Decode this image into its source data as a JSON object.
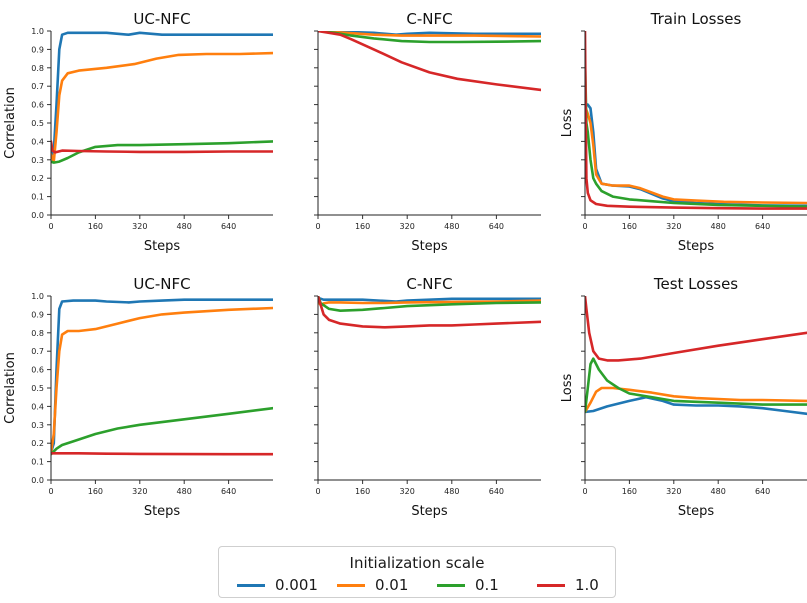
{
  "colors": {
    "0.001": "#1f77b4",
    "0.01": "#ff7f0e",
    "0.1": "#2ca02c",
    "1.0": "#d62728"
  },
  "legend": {
    "title": "Initialization scale",
    "entries": [
      {
        "label": "0.001",
        "color": "#1f77b4"
      },
      {
        "label": "0.01",
        "color": "#ff7f0e"
      },
      {
        "label": "0.1",
        "color": "#2ca02c"
      },
      {
        "label": "1.0",
        "color": "#d62728"
      }
    ],
    "placement": "bottom-center"
  },
  "chart_data": [
    {
      "type": "line",
      "title": "UC-NFC",
      "xlabel": "Steps",
      "ylabel": "Correlation",
      "xlim": [
        0,
        800
      ],
      "ylim": [
        0,
        1
      ],
      "xticks": [
        0,
        160,
        320,
        480,
        640
      ],
      "yticks": [
        0.0,
        0.1,
        0.2,
        0.3,
        0.4,
        0.5,
        0.6,
        0.7,
        0.8,
        0.9,
        1.0
      ],
      "ytick_labels_shown": true,
      "series": [
        {
          "name": "0.001",
          "x": [
            0,
            5,
            10,
            20,
            30,
            40,
            60,
            100,
            200,
            280,
            320,
            400,
            500,
            640,
            800
          ],
          "y": [
            0.38,
            0.33,
            0.35,
            0.6,
            0.9,
            0.98,
            0.99,
            0.99,
            0.99,
            0.98,
            0.99,
            0.98,
            0.98,
            0.98,
            0.98
          ]
        },
        {
          "name": "0.01",
          "x": [
            0,
            10,
            20,
            30,
            40,
            60,
            100,
            200,
            300,
            380,
            460,
            560,
            680,
            800
          ],
          "y": [
            0.33,
            0.29,
            0.45,
            0.65,
            0.73,
            0.77,
            0.785,
            0.8,
            0.82,
            0.85,
            0.87,
            0.875,
            0.875,
            0.88
          ]
        },
        {
          "name": "0.1",
          "x": [
            0,
            10,
            30,
            60,
            100,
            160,
            240,
            320,
            480,
            640,
            800
          ],
          "y": [
            0.29,
            0.285,
            0.29,
            0.31,
            0.34,
            0.37,
            0.38,
            0.38,
            0.385,
            0.39,
            0.4
          ]
        },
        {
          "name": "1.0",
          "x": [
            0,
            5,
            15,
            40,
            100,
            200,
            320,
            480,
            640,
            800
          ],
          "y": [
            0.4,
            0.35,
            0.34,
            0.35,
            0.348,
            0.345,
            0.343,
            0.343,
            0.345,
            0.345
          ]
        }
      ]
    },
    {
      "type": "line",
      "title": "C-NFC",
      "xlabel": "Steps",
      "ylabel": "",
      "xlim": [
        0,
        800
      ],
      "ylim": [
        0,
        1
      ],
      "xticks": [
        0,
        160,
        320,
        480,
        640
      ],
      "yticks": [
        0.0,
        0.1,
        0.2,
        0.3,
        0.4,
        0.5,
        0.6,
        0.7,
        0.8,
        0.9,
        1.0
      ],
      "ytick_labels_shown": false,
      "series": [
        {
          "name": "0.001",
          "x": [
            0,
            100,
            200,
            280,
            320,
            400,
            560,
            800
          ],
          "y": [
            1.0,
            0.995,
            0.99,
            0.98,
            0.985,
            0.99,
            0.985,
            0.985
          ]
        },
        {
          "name": "0.01",
          "x": [
            0,
            100,
            200,
            300,
            400,
            560,
            800
          ],
          "y": [
            1.0,
            0.99,
            0.98,
            0.975,
            0.975,
            0.975,
            0.97
          ]
        },
        {
          "name": "0.1",
          "x": [
            0,
            60,
            120,
            200,
            300,
            400,
            500,
            640,
            800
          ],
          "y": [
            1.0,
            0.99,
            0.975,
            0.96,
            0.945,
            0.94,
            0.94,
            0.942,
            0.945
          ]
        },
        {
          "name": "1.0",
          "x": [
            0,
            40,
            80,
            120,
            200,
            300,
            400,
            500,
            640,
            800
          ],
          "y": [
            1.0,
            0.99,
            0.98,
            0.955,
            0.9,
            0.83,
            0.775,
            0.74,
            0.71,
            0.68
          ]
        }
      ]
    },
    {
      "type": "line",
      "title": "Train Losses",
      "xlabel": "Steps",
      "ylabel": "Loss",
      "xlim": [
        0,
        800
      ],
      "ylim": [
        0,
        1
      ],
      "xticks": [
        0,
        160,
        320,
        480,
        640
      ],
      "yticks": [
        0.0,
        0.1,
        0.2,
        0.3,
        0.4,
        0.5,
        0.6,
        0.7,
        0.8,
        0.9,
        1.0
      ],
      "ytick_labels_shown": false,
      "series": [
        {
          "name": "0.001",
          "x": [
            0,
            10,
            20,
            30,
            40,
            60,
            100,
            160,
            200,
            280,
            320,
            400,
            500,
            640,
            800
          ],
          "y": [
            0.6,
            0.6,
            0.58,
            0.45,
            0.25,
            0.17,
            0.16,
            0.155,
            0.14,
            0.09,
            0.075,
            0.065,
            0.058,
            0.052,
            0.05
          ]
        },
        {
          "name": "0.01",
          "x": [
            0,
            5,
            10,
            20,
            30,
            40,
            60,
            100,
            160,
            200,
            280,
            320,
            400,
            500,
            640,
            800
          ],
          "y": [
            0.45,
            0.57,
            0.55,
            0.5,
            0.38,
            0.22,
            0.17,
            0.16,
            0.16,
            0.145,
            0.1,
            0.085,
            0.078,
            0.072,
            0.068,
            0.065
          ]
        },
        {
          "name": "0.1",
          "x": [
            0,
            5,
            10,
            20,
            30,
            40,
            60,
            100,
            160,
            240,
            320,
            480,
            640,
            800
          ],
          "y": [
            0.85,
            0.5,
            0.45,
            0.3,
            0.2,
            0.17,
            0.13,
            0.1,
            0.085,
            0.075,
            0.065,
            0.055,
            0.05,
            0.045
          ]
        },
        {
          "name": "1.0",
          "x": [
            0,
            2,
            5,
            10,
            20,
            40,
            80,
            160,
            320,
            480,
            640,
            800
          ],
          "y": [
            1.0,
            0.6,
            0.2,
            0.12,
            0.08,
            0.06,
            0.05,
            0.045,
            0.04,
            0.037,
            0.035,
            0.035
          ]
        }
      ]
    },
    {
      "type": "line",
      "title": "UC-NFC",
      "xlabel": "Steps",
      "ylabel": "Correlation",
      "xlim": [
        0,
        800
      ],
      "ylim": [
        0,
        1
      ],
      "xticks": [
        0,
        160,
        320,
        480,
        640
      ],
      "yticks": [
        0.0,
        0.1,
        0.2,
        0.3,
        0.4,
        0.5,
        0.6,
        0.7,
        0.8,
        0.9,
        1.0
      ],
      "ytick_labels_shown": true,
      "series": [
        {
          "name": "0.001",
          "x": [
            0,
            10,
            20,
            30,
            40,
            80,
            160,
            200,
            280,
            320,
            400,
            480,
            640,
            800
          ],
          "y": [
            0.15,
            0.2,
            0.6,
            0.93,
            0.97,
            0.975,
            0.975,
            0.97,
            0.965,
            0.97,
            0.975,
            0.98,
            0.98,
            0.98
          ]
        },
        {
          "name": "0.01",
          "x": [
            0,
            10,
            20,
            30,
            40,
            60,
            100,
            160,
            240,
            320,
            400,
            480,
            640,
            800
          ],
          "y": [
            0.15,
            0.25,
            0.5,
            0.7,
            0.79,
            0.81,
            0.81,
            0.82,
            0.85,
            0.88,
            0.9,
            0.91,
            0.925,
            0.935
          ]
        },
        {
          "name": "0.1",
          "x": [
            0,
            20,
            40,
            80,
            160,
            240,
            320,
            480,
            640,
            800
          ],
          "y": [
            0.14,
            0.17,
            0.19,
            0.21,
            0.25,
            0.28,
            0.3,
            0.33,
            0.36,
            0.39
          ]
        },
        {
          "name": "1.0",
          "x": [
            0,
            40,
            100,
            200,
            320,
            480,
            640,
            800
          ],
          "y": [
            0.145,
            0.145,
            0.145,
            0.143,
            0.142,
            0.141,
            0.14,
            0.14
          ]
        }
      ]
    },
    {
      "type": "line",
      "title": "C-NFC",
      "xlabel": "Steps",
      "ylabel": "",
      "xlim": [
        0,
        800
      ],
      "ylim": [
        0,
        1
      ],
      "xticks": [
        0,
        160,
        320,
        480,
        640
      ],
      "yticks": [
        0.0,
        0.1,
        0.2,
        0.3,
        0.4,
        0.5,
        0.6,
        0.7,
        0.8,
        0.9,
        1.0
      ],
      "ytick_labels_shown": false,
      "series": [
        {
          "name": "0.001",
          "x": [
            0,
            20,
            60,
            160,
            280,
            320,
            400,
            480,
            640,
            800
          ],
          "y": [
            0.99,
            0.98,
            0.98,
            0.98,
            0.97,
            0.975,
            0.98,
            0.985,
            0.985,
            0.985
          ]
        },
        {
          "name": "0.01",
          "x": [
            0,
            10,
            20,
            40,
            80,
            160,
            240,
            320,
            480,
            640,
            800
          ],
          "y": [
            0.97,
            0.95,
            0.96,
            0.965,
            0.965,
            0.962,
            0.962,
            0.965,
            0.968,
            0.97,
            0.975
          ]
        },
        {
          "name": "0.1",
          "x": [
            0,
            10,
            20,
            40,
            80,
            160,
            240,
            320,
            480,
            640,
            800
          ],
          "y": [
            1.0,
            0.96,
            0.95,
            0.93,
            0.92,
            0.925,
            0.935,
            0.945,
            0.955,
            0.962,
            0.965
          ]
        },
        {
          "name": "1.0",
          "x": [
            0,
            10,
            20,
            40,
            80,
            160,
            240,
            320,
            400,
            480,
            560,
            640,
            800
          ],
          "y": [
            1.0,
            0.95,
            0.9,
            0.87,
            0.85,
            0.835,
            0.83,
            0.835,
            0.84,
            0.84,
            0.845,
            0.85,
            0.86
          ]
        }
      ]
    },
    {
      "type": "line",
      "title": "Test Losses",
      "xlabel": "Steps",
      "ylabel": "Loss",
      "xlim": [
        0,
        800
      ],
      "ylim": [
        0,
        1
      ],
      "xticks": [
        0,
        160,
        320,
        480,
        640
      ],
      "yticks": [
        0.0,
        0.1,
        0.2,
        0.3,
        0.4,
        0.5,
        0.6,
        0.7,
        0.8,
        0.9,
        1.0
      ],
      "ytick_labels_shown": false,
      "series": [
        {
          "name": "0.001",
          "x": [
            0,
            30,
            80,
            160,
            220,
            280,
            320,
            400,
            480,
            560,
            640,
            720,
            800
          ],
          "y": [
            0.37,
            0.375,
            0.4,
            0.43,
            0.45,
            0.43,
            0.41,
            0.405,
            0.405,
            0.4,
            0.39,
            0.375,
            0.36
          ]
        },
        {
          "name": "0.01",
          "x": [
            0,
            20,
            40,
            60,
            100,
            160,
            240,
            320,
            400,
            480,
            560,
            640,
            800
          ],
          "y": [
            0.37,
            0.42,
            0.48,
            0.5,
            0.5,
            0.49,
            0.475,
            0.455,
            0.445,
            0.44,
            0.435,
            0.435,
            0.43
          ]
        },
        {
          "name": "0.1",
          "x": [
            0,
            10,
            20,
            30,
            50,
            80,
            120,
            160,
            240,
            320,
            480,
            640,
            800
          ],
          "y": [
            0.37,
            0.5,
            0.63,
            0.66,
            0.6,
            0.54,
            0.5,
            0.47,
            0.45,
            0.43,
            0.42,
            0.41,
            0.41
          ]
        },
        {
          "name": "1.0",
          "x": [
            0,
            5,
            15,
            30,
            50,
            80,
            120,
            200,
            320,
            480,
            640,
            800
          ],
          "y": [
            1.0,
            0.93,
            0.8,
            0.7,
            0.66,
            0.65,
            0.65,
            0.66,
            0.69,
            0.73,
            0.765,
            0.8
          ]
        }
      ]
    }
  ]
}
